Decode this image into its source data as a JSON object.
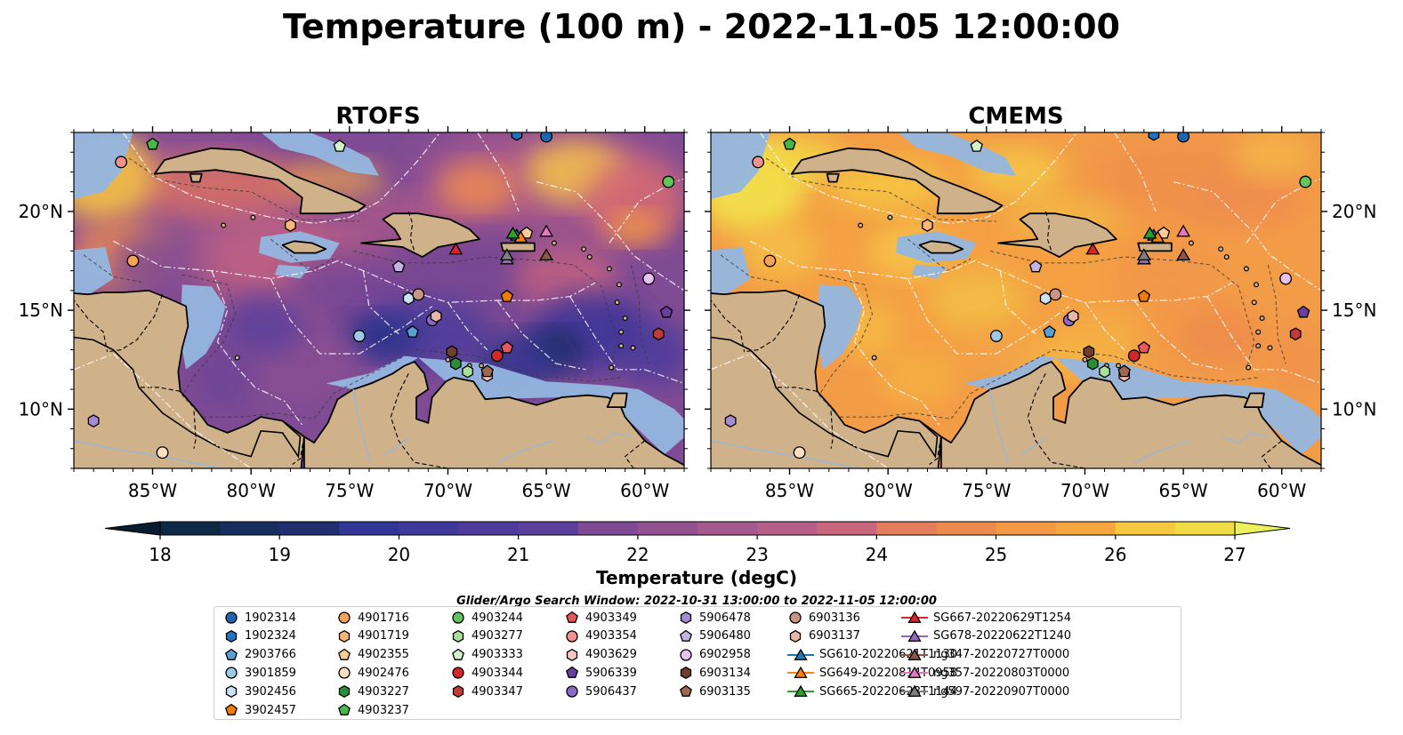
{
  "figure": {
    "title": "Temperature (100 m) - 2022-11-05 12:00:00",
    "colorbar_label": "Temperature (degC)",
    "search_window": "Glider/Argo Search Window: 2022-10-31 13:00:00 to 2022-11-05 12:00:00"
  },
  "chart_data": [
    {
      "type": "heatmap",
      "title": "RTOFS",
      "variable": "Temperature (100 m)",
      "x_ticks": [
        "85°W",
        "80°W",
        "75°W",
        "70°W",
        "65°W",
        "60°W"
      ],
      "y_ticks": [
        "20°N",
        "15°N",
        "10°N"
      ],
      "xlim": [
        -89,
        -58
      ],
      "ylim": [
        7,
        24
      ]
    },
    {
      "type": "heatmap",
      "title": "CMEMS",
      "variable": "Temperature (100 m)",
      "x_ticks": [
        "85°W",
        "80°W",
        "75°W",
        "70°W",
        "65°W",
        "60°W"
      ],
      "y_ticks": [
        "20°N",
        "15°N",
        "10°N"
      ],
      "xlim": [
        -89,
        -58
      ],
      "ylim": [
        7,
        24
      ]
    }
  ],
  "colorbar": {
    "min": 18,
    "max": 27,
    "step": 0.5,
    "ticks": [
      "18",
      "19",
      "20",
      "21",
      "22",
      "23",
      "24",
      "25",
      "26",
      "27"
    ],
    "colors": [
      "#0c2a45",
      "#172d5b",
      "#1f2f70",
      "#2a3388",
      "#323696",
      "#40399c",
      "#4d3c9c",
      "#5a3f9b",
      "#6d4598",
      "#7e4b94",
      "#925292",
      "#a4598f",
      "#b65f88",
      "#c8667d",
      "#d86f6f",
      "#e57c5e",
      "#ee8a4e",
      "#f39844",
      "#f6a640",
      "#f7b63f",
      "#f6c841",
      "#f0dd46",
      "#e6f04c"
    ],
    "extend_low_color": "#071c2e",
    "extend_high_color": "#ecf05a"
  },
  "platforms": [
    {
      "id": "1902314",
      "marker": "circle",
      "color": "#1f66b0",
      "lon": -65.0,
      "lat": 23.8
    },
    {
      "id": "1902324",
      "marker": "hexagon",
      "color": "#2173c0",
      "lon": -66.5,
      "lat": 23.9
    },
    {
      "id": "2903766",
      "marker": "pentagon",
      "color": "#5b9fd4",
      "lon": -71.8,
      "lat": 13.9
    },
    {
      "id": "3901859",
      "marker": "circle",
      "color": "#9ecae8",
      "lon": -74.5,
      "lat": 13.7
    },
    {
      "id": "3902456",
      "marker": "hexagon",
      "color": "#c8e2f4",
      "lon": -72.0,
      "lat": 15.6
    },
    {
      "id": "3902457",
      "marker": "pentagon",
      "color": "#f07c08",
      "lon": -67.0,
      "lat": 15.7
    },
    {
      "id": "4901716",
      "marker": "circle",
      "color": "#f6a35a",
      "lon": -86.0,
      "lat": 17.5
    },
    {
      "id": "4901719",
      "marker": "hexagon",
      "color": "#f8b679",
      "lon": -78.0,
      "lat": 19.3
    },
    {
      "id": "4902355",
      "marker": "pentagon",
      "color": "#f9cc99",
      "lon": -66.0,
      "lat": 18.9
    },
    {
      "id": "4902476",
      "marker": "circle",
      "color": "#fde0c2",
      "lon": -84.5,
      "lat": 7.8
    },
    {
      "id": "4903227",
      "marker": "hexagon",
      "color": "#2a8f3b",
      "lon": -69.6,
      "lat": 12.3
    },
    {
      "id": "4903237",
      "marker": "pentagon",
      "color": "#45b84a",
      "lon": -85.0,
      "lat": 23.4
    },
    {
      "id": "4903244",
      "marker": "circle",
      "color": "#62c55c",
      "lon": -58.8,
      "lat": 21.5
    },
    {
      "id": "4903277",
      "marker": "hexagon",
      "color": "#a8e09c",
      "lon": -69.0,
      "lat": 11.9
    },
    {
      "id": "4903333",
      "marker": "pentagon",
      "color": "#d4f2c8",
      "lon": -75.5,
      "lat": 23.3
    },
    {
      "id": "4903344",
      "marker": "circle",
      "color": "#d62728",
      "lon": -67.5,
      "lat": 12.7
    },
    {
      "id": "4903347",
      "marker": "hexagon",
      "color": "#c43a3a",
      "lon": -59.3,
      "lat": 13.8
    },
    {
      "id": "4903349",
      "marker": "pentagon",
      "color": "#e8575a",
      "lon": -67.0,
      "lat": 13.1
    },
    {
      "id": "4903354",
      "marker": "circle",
      "color": "#f29290",
      "lon": -86.6,
      "lat": 22.5
    },
    {
      "id": "4903629",
      "marker": "hexagon",
      "color": "#f6c6c4",
      "lon": -68.0,
      "lat": 11.7
    },
    {
      "id": "5906339",
      "marker": "pentagon",
      "color": "#6a3da0",
      "lon": -58.9,
      "lat": 14.9
    },
    {
      "id": "5906437",
      "marker": "circle",
      "color": "#8c6bc6",
      "lon": -70.8,
      "lat": 14.5
    },
    {
      "id": "5906478",
      "marker": "hexagon",
      "color": "#a58bd3",
      "lon": -88.0,
      "lat": 9.4
    },
    {
      "id": "5906480",
      "marker": "pentagon",
      "color": "#c5b3e4",
      "lon": -72.5,
      "lat": 17.2
    },
    {
      "id": "6902958",
      "marker": "circle",
      "color": "#e6c2f0",
      "lon": -59.8,
      "lat": 16.6
    },
    {
      "id": "6903134",
      "marker": "hexagon",
      "color": "#6e3f2c",
      "lon": -69.8,
      "lat": 12.9
    },
    {
      "id": "6903135",
      "marker": "pentagon",
      "color": "#a0674f",
      "lon": -68.0,
      "lat": 11.9
    },
    {
      "id": "6903136",
      "marker": "circle",
      "color": "#c89484",
      "lon": -71.5,
      "lat": 15.8
    },
    {
      "id": "6903137",
      "marker": "hexagon",
      "color": "#e9b8aa",
      "lon": -70.6,
      "lat": 14.7
    },
    {
      "id": "SG610-20220621T1130",
      "marker": "triangle",
      "color": "#1f77b4",
      "lon": -66.5,
      "lat": 18.8
    },
    {
      "id": "SG649-20220814T0958",
      "marker": "triangle",
      "color": "#ff7f0e",
      "lon": -66.3,
      "lat": 18.7
    },
    {
      "id": "SG665-20220623T1144",
      "marker": "triangle",
      "color": "#2ca02c",
      "lon": -66.7,
      "lat": 18.9
    },
    {
      "id": "SG667-20220629T1254",
      "marker": "triangle",
      "color": "#d62728",
      "lon": -69.6,
      "lat": 18.1
    },
    {
      "id": "SG678-20220622T1240",
      "marker": "triangle",
      "color": "#9467bd",
      "lon": -67.0,
      "lat": 17.6
    },
    {
      "id": "ng347-20220727T0000",
      "marker": "triangle",
      "color": "#8c564b",
      "lon": -65.0,
      "lat": 17.8
    },
    {
      "id": "ng357-20220803T0000",
      "marker": "triangle",
      "color": "#e377c2",
      "lon": -65.0,
      "lat": 19.0
    },
    {
      "id": "ng597-20220907T0000",
      "marker": "triangle",
      "color": "#7f7f7f",
      "lon": -67.0,
      "lat": 17.8
    }
  ]
}
